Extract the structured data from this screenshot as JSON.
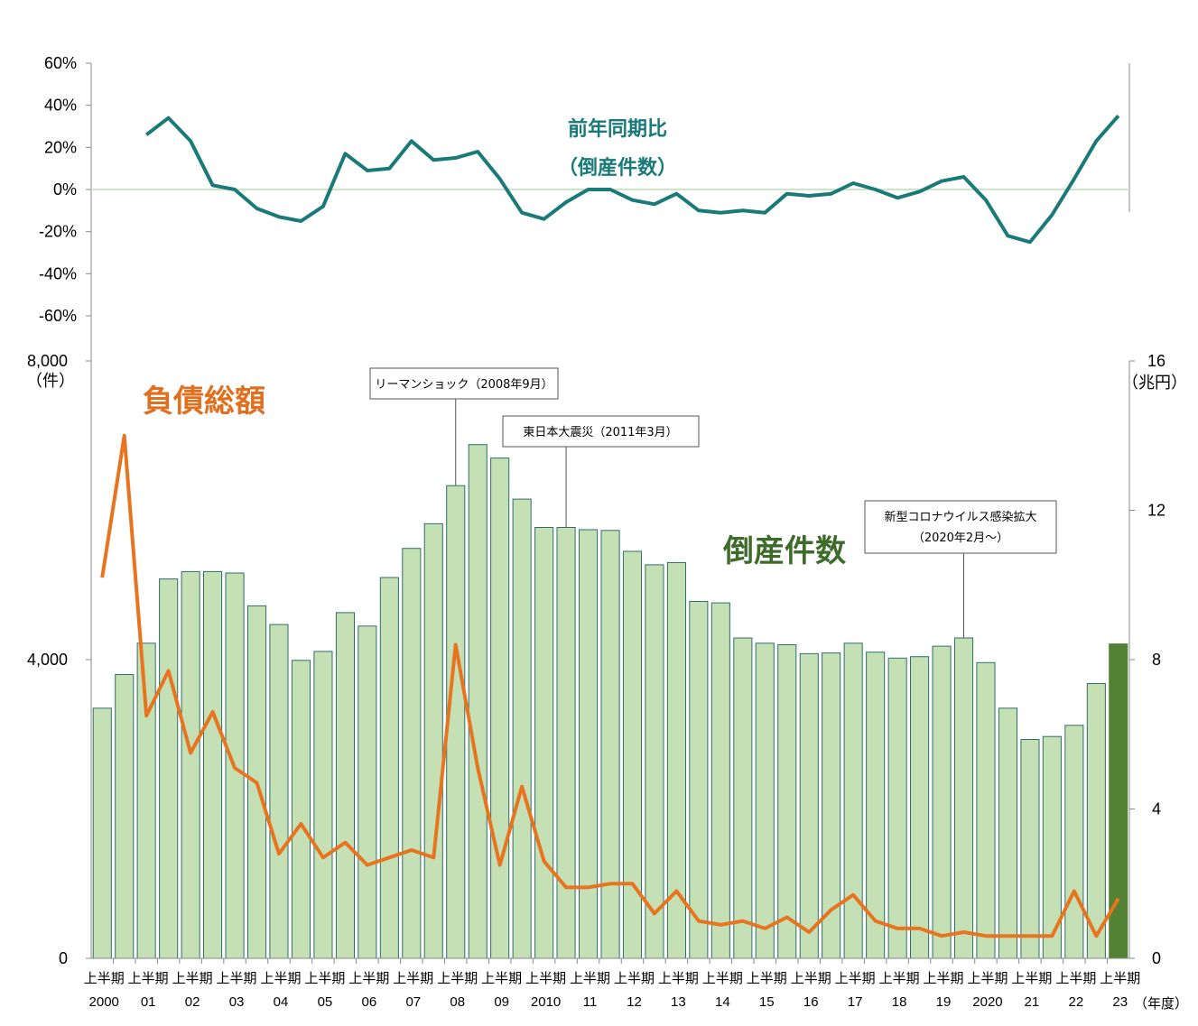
{
  "chart_data": {
    "type": "bar+line",
    "half_label": "上半期",
    "year_labels": [
      "2000",
      "01",
      "02",
      "03",
      "04",
      "05",
      "06",
      "07",
      "08",
      "09",
      "2010",
      "11",
      "12",
      "13",
      "14",
      "15",
      "16",
      "17",
      "18",
      "19",
      "2020",
      "21",
      "22",
      "23"
    ],
    "xlabel_unit": "（年度）",
    "series": [
      {
        "name": "倒産件数",
        "type": "bar",
        "axis": "left",
        "values": [
          3350,
          3800,
          4220,
          5080,
          5180,
          5180,
          5160,
          4720,
          4470,
          3990,
          4110,
          4630,
          4450,
          5100,
          5490,
          5820,
          6330,
          6880,
          6700,
          6150,
          5770,
          5770,
          5740,
          5730,
          5450,
          5270,
          5300,
          4780,
          4760,
          4290,
          4220,
          4200,
          4080,
          4090,
          4220,
          4100,
          4020,
          4040,
          4180,
          4290,
          3960,
          3350,
          2930,
          2970,
          3120,
          3680,
          4210
        ],
        "colors": {
          "normal": "#c5e0b4",
          "edge": "#2e6f6a",
          "highlight": "#548235"
        }
      },
      {
        "name": "負債総額",
        "type": "line",
        "axis": "right",
        "unit": "兆円",
        "color": "#e8741f",
        "values": [
          10.2,
          14.0,
          6.5,
          7.7,
          5.5,
          6.6,
          5.1,
          4.7,
          2.8,
          3.6,
          2.7,
          3.1,
          2.5,
          2.7,
          2.9,
          2.7,
          8.4,
          5.1,
          2.5,
          4.6,
          2.6,
          1.9,
          1.9,
          2.0,
          2.0,
          1.2,
          1.8,
          1.0,
          0.9,
          1.0,
          0.8,
          1.1,
          0.7,
          1.3,
          1.7,
          1.0,
          0.8,
          0.8,
          0.6,
          0.7,
          0.6,
          0.6,
          0.6,
          0.6,
          1.8,
          0.6,
          1.6
        ]
      },
      {
        "name": "前年同期比（倒産件数）",
        "type": "line",
        "axis": "top",
        "unit": "%",
        "color": "#1a7a78",
        "values": [
          null,
          null,
          26,
          34,
          23,
          2,
          0,
          -9,
          -13,
          -15,
          -8,
          17,
          9,
          10,
          23,
          14,
          15,
          18,
          5,
          -11,
          -14,
          -6,
          0,
          0,
          -5,
          -7,
          -2,
          -10,
          -11,
          -10,
          -11,
          -2,
          -3,
          -2,
          3,
          0,
          -4,
          -1,
          4,
          6,
          -5,
          -22,
          -25,
          -12,
          5,
          23,
          35
        ]
      }
    ],
    "left_axis": {
      "ylim": [
        0,
        8000
      ],
      "ticks": [
        "0",
        "4,000",
        "8,000"
      ],
      "unit": "（件）"
    },
    "right_axis": {
      "ylim": [
        0,
        16
      ],
      "ticks": [
        "0",
        "4",
        "8",
        "12",
        "16"
      ],
      "unit": "（兆円）"
    },
    "top_axis": {
      "ylim": [
        -60,
        60
      ],
      "ticks": [
        "60%",
        "40%",
        "20%",
        "0%",
        "-20%",
        "-40%",
        "-60%"
      ]
    },
    "labels": {
      "yoy_title_1": "前年同期比",
      "yoy_title_2": "（倒産件数）",
      "debt_title": "負債総額",
      "count_title": "倒産件数"
    },
    "annotations": [
      {
        "text": "リーマンショック（2008年9月）",
        "index": 16
      },
      {
        "text": "東日本大震災（2011年3月）",
        "index": 21
      },
      {
        "text": "新型コロナウイルス感染拡大",
        "text2": "（2020年2月～）",
        "index": 39
      }
    ]
  }
}
